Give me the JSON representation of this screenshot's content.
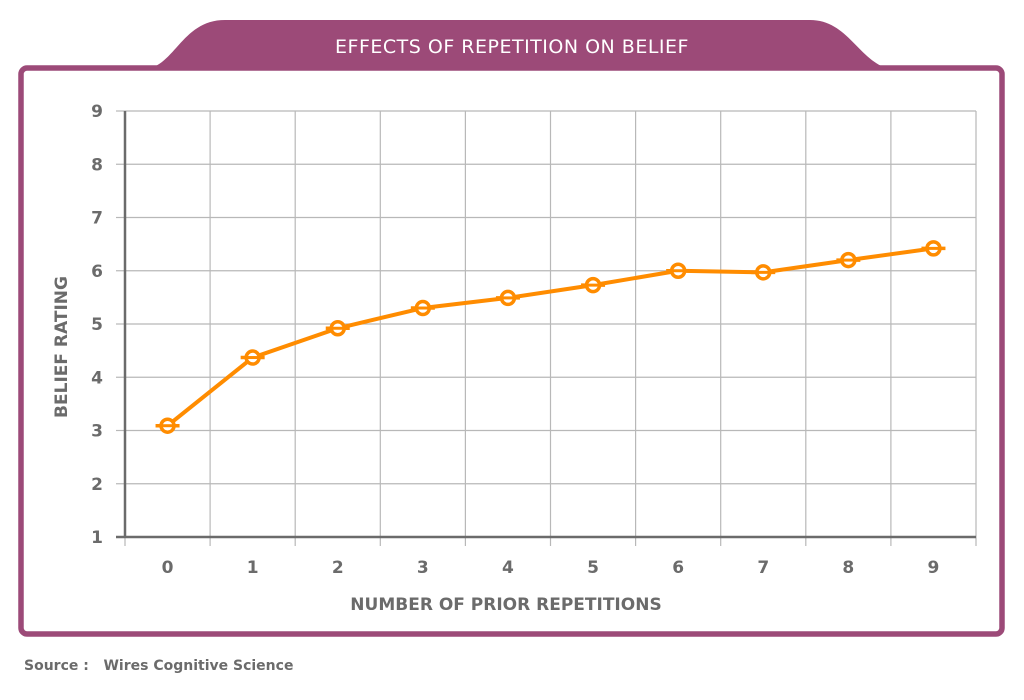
{
  "colors": {
    "frame": "#9c4a78",
    "line": "#ff8c00",
    "axis": "#6b6b6b",
    "grid": "#b8b8b8",
    "text": "#6b6b6b"
  },
  "source": {
    "label": "Source",
    "separator": ":",
    "value": "Wires Cognitive Science"
  },
  "chart_data": {
    "type": "line",
    "title": "EFFECTS OF REPETITION ON BELIEF",
    "xlabel": "NUMBER OF PRIOR REPETITIONS",
    "ylabel": "BELIEF RATING",
    "categories": [
      "0",
      "1",
      "2",
      "3",
      "4",
      "5",
      "6",
      "7",
      "8",
      "9"
    ],
    "series": [
      {
        "name": "Belief rating",
        "values": [
          3.09,
          4.37,
          4.92,
          5.3,
          5.49,
          5.73,
          6.0,
          5.97,
          6.2,
          6.42
        ]
      }
    ],
    "yticks": [
      1,
      2,
      3,
      4,
      5,
      6,
      7,
      8,
      9
    ],
    "ylim": [
      1,
      9
    ],
    "grid": true,
    "legend": "none",
    "marker": "circle-with-bar"
  }
}
